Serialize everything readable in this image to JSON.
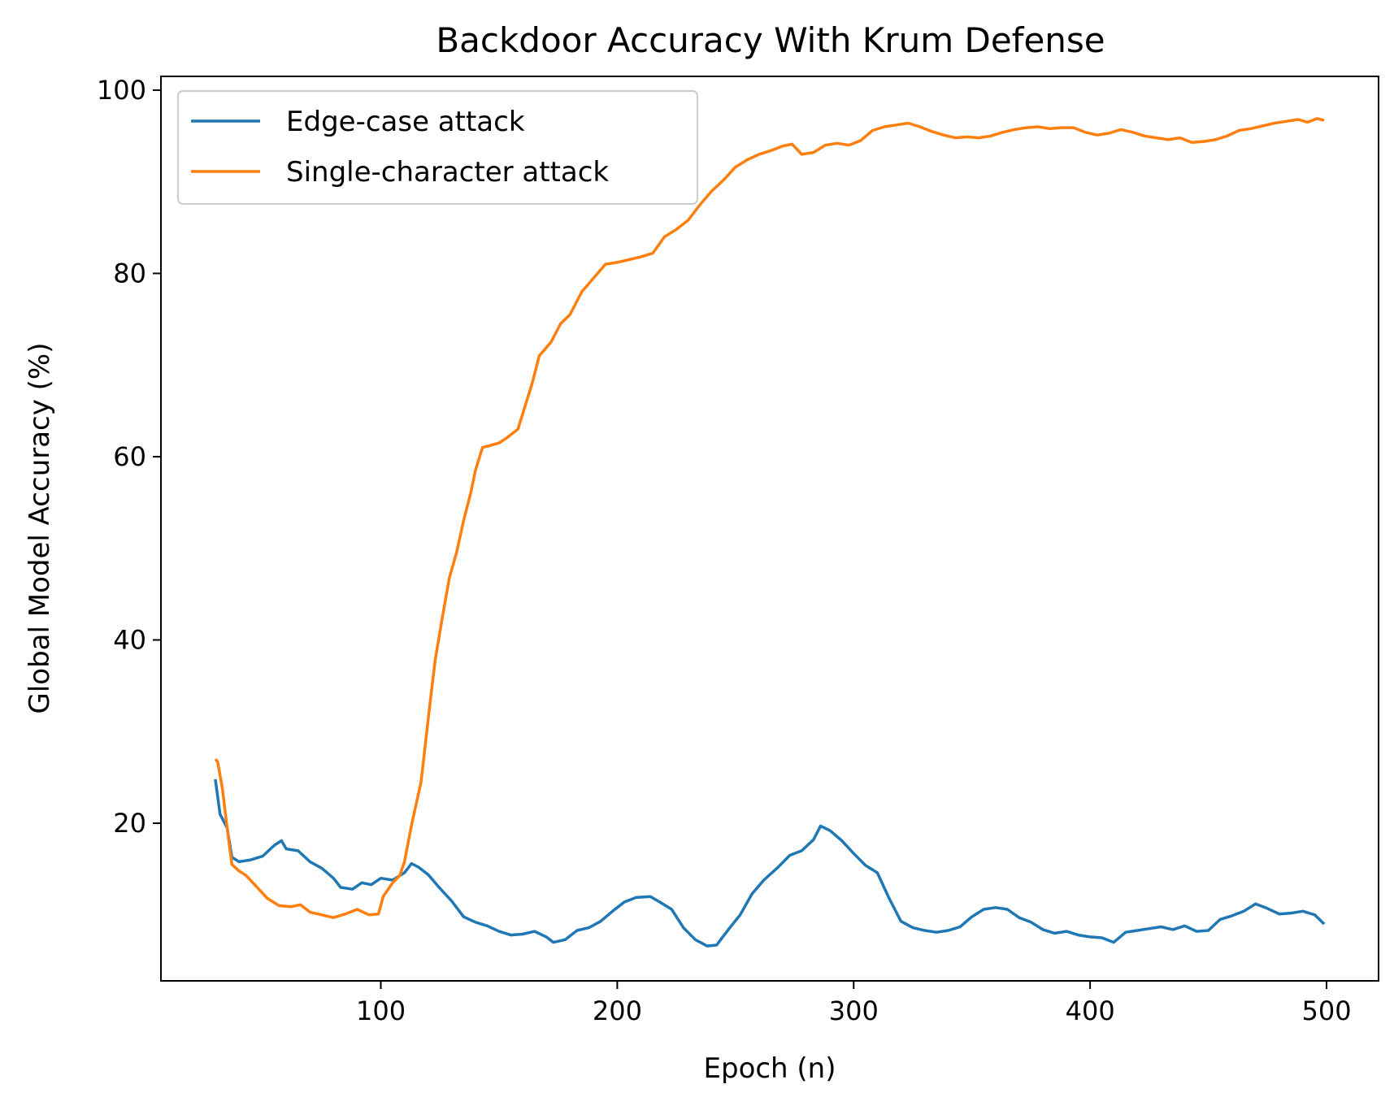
{
  "chart_data": {
    "type": "line",
    "title": "Backdoor Accuracy With Krum Defense",
    "xlabel": "Epoch (n)",
    "ylabel": "Global Model Accuracy (%)",
    "xlim": [
      7,
      522
    ],
    "ylim": [
      2.8,
      101.5
    ],
    "xticks": [
      100,
      200,
      300,
      400,
      500
    ],
    "yticks": [
      20,
      40,
      60,
      80,
      100
    ],
    "grid": false,
    "legend_position": "top-left",
    "series": [
      {
        "name": "Edge-case attack",
        "color": "#1f77b4",
        "points": [
          [
            30,
            24.8
          ],
          [
            32,
            21.0
          ],
          [
            35,
            19.5
          ],
          [
            37,
            16.3
          ],
          [
            40,
            15.8
          ],
          [
            45,
            16.0
          ],
          [
            50,
            16.4
          ],
          [
            55,
            17.6
          ],
          [
            58,
            18.1
          ],
          [
            60,
            17.2
          ],
          [
            65,
            17.0
          ],
          [
            70,
            15.8
          ],
          [
            75,
            15.1
          ],
          [
            80,
            14.0
          ],
          [
            83,
            13.0
          ],
          [
            88,
            12.8
          ],
          [
            92,
            13.5
          ],
          [
            96,
            13.3
          ],
          [
            100,
            14.0
          ],
          [
            105,
            13.8
          ],
          [
            110,
            14.6
          ],
          [
            113,
            15.6
          ],
          [
            116,
            15.2
          ],
          [
            120,
            14.4
          ],
          [
            125,
            12.9
          ],
          [
            130,
            11.5
          ],
          [
            135,
            9.8
          ],
          [
            140,
            9.2
          ],
          [
            145,
            8.8
          ],
          [
            150,
            8.2
          ],
          [
            155,
            7.8
          ],
          [
            160,
            7.9
          ],
          [
            165,
            8.2
          ],
          [
            170,
            7.6
          ],
          [
            173,
            7.0
          ],
          [
            178,
            7.3
          ],
          [
            183,
            8.3
          ],
          [
            188,
            8.6
          ],
          [
            193,
            9.3
          ],
          [
            198,
            10.4
          ],
          [
            203,
            11.4
          ],
          [
            208,
            11.9
          ],
          [
            214,
            12.0
          ],
          [
            218,
            11.4
          ],
          [
            223,
            10.6
          ],
          [
            228,
            8.6
          ],
          [
            233,
            7.3
          ],
          [
            238,
            6.6
          ],
          [
            242,
            6.7
          ],
          [
            247,
            8.4
          ],
          [
            252,
            10.0
          ],
          [
            257,
            12.3
          ],
          [
            262,
            13.8
          ],
          [
            268,
            15.2
          ],
          [
            273,
            16.5
          ],
          [
            278,
            17.0
          ],
          [
            283,
            18.2
          ],
          [
            286,
            19.7
          ],
          [
            290,
            19.2
          ],
          [
            295,
            18.1
          ],
          [
            300,
            16.7
          ],
          [
            305,
            15.4
          ],
          [
            310,
            14.6
          ],
          [
            315,
            11.8
          ],
          [
            320,
            9.3
          ],
          [
            325,
            8.6
          ],
          [
            330,
            8.3
          ],
          [
            335,
            8.1
          ],
          [
            340,
            8.3
          ],
          [
            345,
            8.7
          ],
          [
            350,
            9.8
          ],
          [
            355,
            10.6
          ],
          [
            360,
            10.8
          ],
          [
            365,
            10.6
          ],
          [
            370,
            9.7
          ],
          [
            375,
            9.2
          ],
          [
            380,
            8.4
          ],
          [
            385,
            8.0
          ],
          [
            390,
            8.2
          ],
          [
            395,
            7.8
          ],
          [
            400,
            7.6
          ],
          [
            405,
            7.5
          ],
          [
            410,
            7.0
          ],
          [
            415,
            8.1
          ],
          [
            420,
            8.3
          ],
          [
            425,
            8.5
          ],
          [
            430,
            8.7
          ],
          [
            435,
            8.4
          ],
          [
            440,
            8.8
          ],
          [
            445,
            8.2
          ],
          [
            450,
            8.3
          ],
          [
            455,
            9.5
          ],
          [
            460,
            9.9
          ],
          [
            465,
            10.4
          ],
          [
            470,
            11.2
          ],
          [
            475,
            10.7
          ],
          [
            480,
            10.1
          ],
          [
            485,
            10.2
          ],
          [
            490,
            10.4
          ],
          [
            495,
            10.0
          ],
          [
            499,
            9.0
          ]
        ]
      },
      {
        "name": "Single-character attack",
        "color": "#ff7f0e",
        "points": [
          [
            30,
            27.0
          ],
          [
            31,
            26.7
          ],
          [
            33,
            23.8
          ],
          [
            35,
            19.5
          ],
          [
            37,
            15.5
          ],
          [
            40,
            14.8
          ],
          [
            43,
            14.3
          ],
          [
            47,
            13.2
          ],
          [
            52,
            11.8
          ],
          [
            57,
            11.0
          ],
          [
            62,
            10.9
          ],
          [
            66,
            11.1
          ],
          [
            70,
            10.3
          ],
          [
            75,
            10.0
          ],
          [
            80,
            9.7
          ],
          [
            85,
            10.1
          ],
          [
            90,
            10.6
          ],
          [
            95,
            10.0
          ],
          [
            99,
            10.1
          ],
          [
            101,
            12.0
          ],
          [
            105,
            13.5
          ],
          [
            108,
            14.3
          ],
          [
            110,
            15.8
          ],
          [
            113,
            19.8
          ],
          [
            117,
            24.5
          ],
          [
            119,
            29.0
          ],
          [
            121,
            33.5
          ],
          [
            123,
            37.8
          ],
          [
            126,
            42.4
          ],
          [
            129,
            46.8
          ],
          [
            132,
            49.5
          ],
          [
            135,
            53.0
          ],
          [
            138,
            56.0
          ],
          [
            140,
            58.5
          ],
          [
            143,
            61.0
          ],
          [
            146,
            61.2
          ],
          [
            150,
            61.5
          ],
          [
            153,
            62.0
          ],
          [
            158,
            63.0
          ],
          [
            161,
            65.5
          ],
          [
            164,
            68.0
          ],
          [
            167,
            71.0
          ],
          [
            172,
            72.5
          ],
          [
            176,
            74.5
          ],
          [
            180,
            75.5
          ],
          [
            185,
            78.0
          ],
          [
            190,
            79.5
          ],
          [
            195,
            81.0
          ],
          [
            200,
            81.2
          ],
          [
            205,
            81.5
          ],
          [
            210,
            81.8
          ],
          [
            215,
            82.2
          ],
          [
            220,
            84.0
          ],
          [
            225,
            84.8
          ],
          [
            230,
            85.8
          ],
          [
            235,
            87.5
          ],
          [
            240,
            89.0
          ],
          [
            245,
            90.2
          ],
          [
            250,
            91.6
          ],
          [
            255,
            92.4
          ],
          [
            260,
            93.0
          ],
          [
            265,
            93.4
          ],
          [
            270,
            93.9
          ],
          [
            274,
            94.1
          ],
          [
            278,
            93.0
          ],
          [
            283,
            93.2
          ],
          [
            288,
            94.0
          ],
          [
            293,
            94.2
          ],
          [
            298,
            94.0
          ],
          [
            303,
            94.5
          ],
          [
            308,
            95.6
          ],
          [
            313,
            96.0
          ],
          [
            318,
            96.2
          ],
          [
            323,
            96.4
          ],
          [
            328,
            96.0
          ],
          [
            333,
            95.5
          ],
          [
            338,
            95.1
          ],
          [
            343,
            94.8
          ],
          [
            348,
            94.9
          ],
          [
            353,
            94.8
          ],
          [
            358,
            95.0
          ],
          [
            363,
            95.4
          ],
          [
            368,
            95.7
          ],
          [
            373,
            95.9
          ],
          [
            378,
            96.0
          ],
          [
            383,
            95.8
          ],
          [
            388,
            95.9
          ],
          [
            393,
            95.9
          ],
          [
            398,
            95.4
          ],
          [
            403,
            95.1
          ],
          [
            408,
            95.3
          ],
          [
            413,
            95.7
          ],
          [
            418,
            95.4
          ],
          [
            423,
            95.0
          ],
          [
            428,
            94.8
          ],
          [
            433,
            94.6
          ],
          [
            438,
            94.8
          ],
          [
            443,
            94.3
          ],
          [
            448,
            94.4
          ],
          [
            453,
            94.6
          ],
          [
            458,
            95.0
          ],
          [
            463,
            95.6
          ],
          [
            468,
            95.8
          ],
          [
            473,
            96.1
          ],
          [
            478,
            96.4
          ],
          [
            483,
            96.6
          ],
          [
            488,
            96.8
          ],
          [
            492,
            96.5
          ],
          [
            496,
            96.9
          ],
          [
            499,
            96.7
          ]
        ]
      }
    ]
  }
}
